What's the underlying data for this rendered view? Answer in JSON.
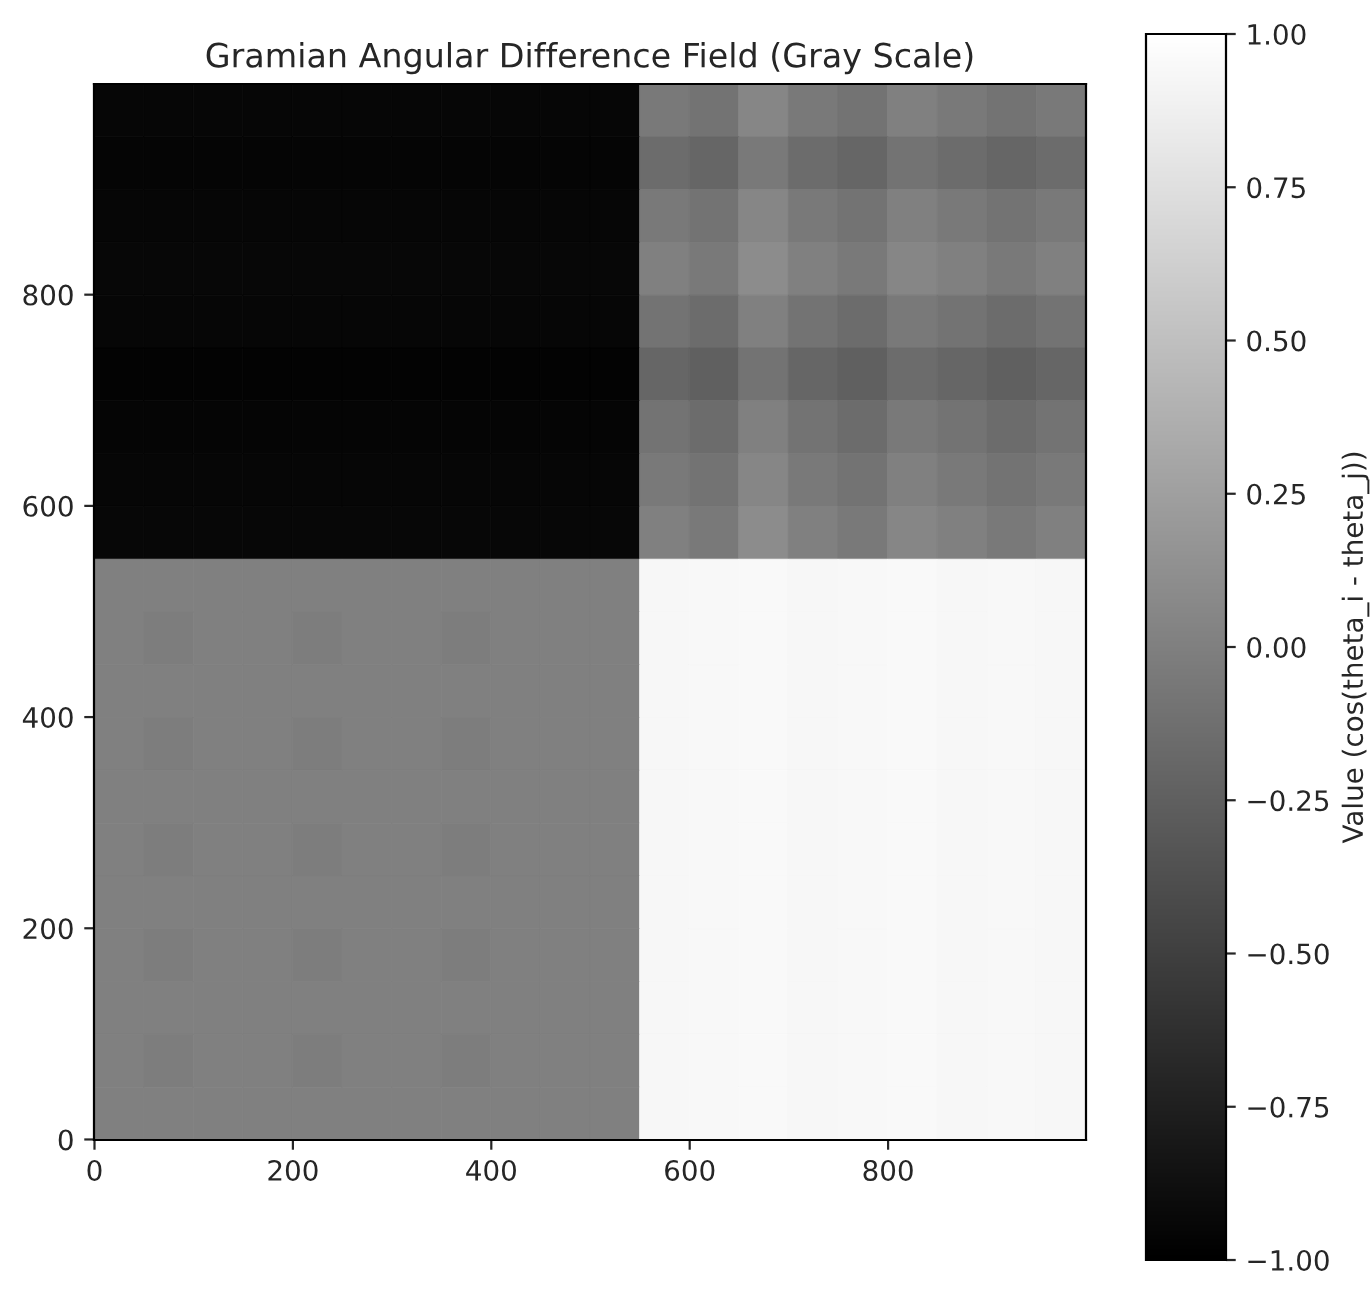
{
  "chart_data": {
    "type": "heatmap",
    "title": "Gramian Angular Difference Field (Gray Scale)",
    "clabel": "Value (cos(theta_i - theta_j))",
    "x": [
      24.5,
      74.5,
      124.5,
      174.5,
      224.5,
      274.5,
      324.5,
      374.5,
      424.5,
      474.5,
      524.5,
      574.5,
      624.5,
      674.5,
      724.5,
      774.5,
      824.5,
      874.5,
      924.5,
      974.5
    ],
    "y": [
      974.5,
      924.5,
      874.5,
      824.5,
      774.5,
      724.5,
      674.5,
      624.5,
      574.5,
      524.5,
      474.5,
      424.5,
      374.5,
      324.5,
      274.5,
      224.5,
      174.5,
      124.5,
      74.5,
      24.5
    ],
    "xlim": [
      -0.5,
      999.5
    ],
    "ylim": [
      -0.5,
      999.5
    ],
    "xticks": [
      0,
      200,
      400,
      600,
      800
    ],
    "yticks": [
      0,
      200,
      400,
      600,
      800
    ],
    "cells": [
      [
        -0.95,
        -0.95,
        -0.95,
        -0.95,
        -0.95,
        -0.95,
        -0.95,
        -0.95,
        -0.95,
        -0.95,
        -0.95,
        -0.05,
        -0.1,
        0.05,
        -0.05,
        -0.1,
        0.0,
        -0.05,
        -0.1,
        -0.05
      ],
      [
        -0.96,
        -0.96,
        -0.96,
        -0.96,
        -0.96,
        -0.96,
        -0.96,
        -0.96,
        -0.96,
        -0.96,
        -0.96,
        -0.15,
        -0.2,
        -0.05,
        -0.15,
        -0.2,
        -0.1,
        -0.15,
        -0.2,
        -0.15
      ],
      [
        -0.95,
        -0.95,
        -0.95,
        -0.95,
        -0.95,
        -0.95,
        -0.95,
        -0.95,
        -0.95,
        -0.95,
        -0.95,
        -0.05,
        -0.1,
        0.05,
        -0.05,
        -0.1,
        0.0,
        -0.05,
        -0.1,
        -0.05
      ],
      [
        -0.94,
        -0.94,
        -0.94,
        -0.94,
        -0.94,
        -0.94,
        -0.94,
        -0.94,
        -0.94,
        -0.94,
        -0.94,
        0.0,
        -0.05,
        0.1,
        0.0,
        -0.05,
        0.05,
        0.0,
        -0.05,
        0.0
      ],
      [
        -0.95,
        -0.95,
        -0.95,
        -0.95,
        -0.95,
        -0.95,
        -0.95,
        -0.95,
        -0.95,
        -0.95,
        -0.95,
        -0.1,
        -0.15,
        0.0,
        -0.1,
        -0.15,
        -0.05,
        -0.1,
        -0.15,
        -0.1
      ],
      [
        -0.97,
        -0.97,
        -0.97,
        -0.97,
        -0.97,
        -0.97,
        -0.97,
        -0.97,
        -0.97,
        -0.97,
        -0.97,
        -0.2,
        -0.25,
        -0.1,
        -0.2,
        -0.25,
        -0.15,
        -0.2,
        -0.25,
        -0.2
      ],
      [
        -0.96,
        -0.96,
        -0.96,
        -0.96,
        -0.96,
        -0.96,
        -0.96,
        -0.96,
        -0.96,
        -0.96,
        -0.96,
        -0.1,
        -0.15,
        0.0,
        -0.1,
        -0.15,
        -0.05,
        -0.1,
        -0.15,
        -0.1
      ],
      [
        -0.95,
        -0.95,
        -0.95,
        -0.95,
        -0.95,
        -0.95,
        -0.95,
        -0.95,
        -0.95,
        -0.95,
        -0.95,
        -0.05,
        -0.1,
        0.05,
        -0.05,
        -0.1,
        0.0,
        -0.05,
        -0.1,
        -0.05
      ],
      [
        -0.94,
        -0.94,
        -0.94,
        -0.94,
        -0.94,
        -0.94,
        -0.94,
        -0.94,
        -0.94,
        -0.94,
        -0.94,
        0.0,
        -0.05,
        0.1,
        0.0,
        -0.05,
        0.05,
        0.0,
        -0.05,
        0.0
      ],
      [
        0.0,
        0.0,
        0.0,
        0.0,
        0.0,
        0.0,
        0.0,
        0.0,
        0.0,
        0.0,
        0.0,
        0.93,
        0.94,
        0.95,
        0.93,
        0.94,
        0.95,
        0.93,
        0.94,
        0.93
      ],
      [
        0.0,
        -0.02,
        0.0,
        0.0,
        -0.02,
        0.0,
        0.0,
        -0.02,
        0.0,
        0.0,
        0.0,
        0.93,
        0.94,
        0.95,
        0.93,
        0.94,
        0.95,
        0.93,
        0.94,
        0.93
      ],
      [
        0.0,
        0.0,
        0.0,
        0.0,
        0.0,
        0.0,
        0.0,
        0.0,
        0.0,
        0.0,
        0.0,
        0.93,
        0.94,
        0.95,
        0.93,
        0.94,
        0.95,
        0.93,
        0.94,
        0.93
      ],
      [
        0.0,
        -0.02,
        0.0,
        0.0,
        -0.02,
        0.0,
        0.0,
        -0.02,
        0.0,
        0.0,
        0.0,
        0.93,
        0.94,
        0.95,
        0.93,
        0.94,
        0.95,
        0.93,
        0.94,
        0.93
      ],
      [
        0.0,
        0.0,
        0.0,
        0.0,
        0.0,
        0.0,
        0.0,
        0.0,
        0.0,
        0.0,
        0.0,
        0.93,
        0.94,
        0.95,
        0.93,
        0.94,
        0.95,
        0.93,
        0.94,
        0.93
      ],
      [
        0.0,
        -0.02,
        0.0,
        0.0,
        -0.02,
        0.0,
        0.0,
        -0.02,
        0.0,
        0.0,
        0.0,
        0.93,
        0.94,
        0.95,
        0.93,
        0.94,
        0.95,
        0.93,
        0.94,
        0.93
      ],
      [
        0.0,
        0.0,
        0.0,
        0.0,
        0.0,
        0.0,
        0.0,
        0.0,
        0.0,
        0.0,
        0.0,
        0.93,
        0.94,
        0.95,
        0.93,
        0.94,
        0.95,
        0.93,
        0.94,
        0.93
      ],
      [
        0.0,
        -0.02,
        0.0,
        0.0,
        -0.02,
        0.0,
        0.0,
        -0.02,
        0.0,
        0.0,
        0.0,
        0.93,
        0.94,
        0.95,
        0.93,
        0.94,
        0.95,
        0.93,
        0.94,
        0.93
      ],
      [
        0.0,
        0.0,
        0.0,
        0.0,
        0.0,
        0.0,
        0.0,
        0.0,
        0.0,
        0.0,
        0.0,
        0.93,
        0.94,
        0.95,
        0.93,
        0.94,
        0.95,
        0.93,
        0.94,
        0.93
      ],
      [
        0.0,
        -0.02,
        0.0,
        0.0,
        -0.02,
        0.0,
        0.0,
        -0.02,
        0.0,
        0.0,
        0.0,
        0.93,
        0.94,
        0.95,
        0.93,
        0.94,
        0.95,
        0.93,
        0.94,
        0.93
      ],
      [
        0.0,
        0.0,
        0.0,
        0.0,
        0.0,
        0.0,
        0.0,
        0.0,
        0.0,
        0.0,
        0.0,
        0.93,
        0.94,
        0.95,
        0.93,
        0.94,
        0.95,
        0.93,
        0.94,
        0.93
      ]
    ],
    "clim": [
      -1,
      1
    ],
    "cticks": [
      {
        "value": -1,
        "label": "−1.00"
      },
      {
        "value": -0.75,
        "label": "−0.75"
      },
      {
        "value": -0.5,
        "label": "−0.50"
      },
      {
        "value": -0.25,
        "label": "−0.25"
      },
      {
        "value": 0,
        "label": "0.00"
      },
      {
        "value": 0.25,
        "label": "0.25"
      },
      {
        "value": 0.5,
        "label": "0.50"
      },
      {
        "value": 0.75,
        "label": "0.75"
      },
      {
        "value": 1,
        "label": "1.00"
      }
    ]
  }
}
